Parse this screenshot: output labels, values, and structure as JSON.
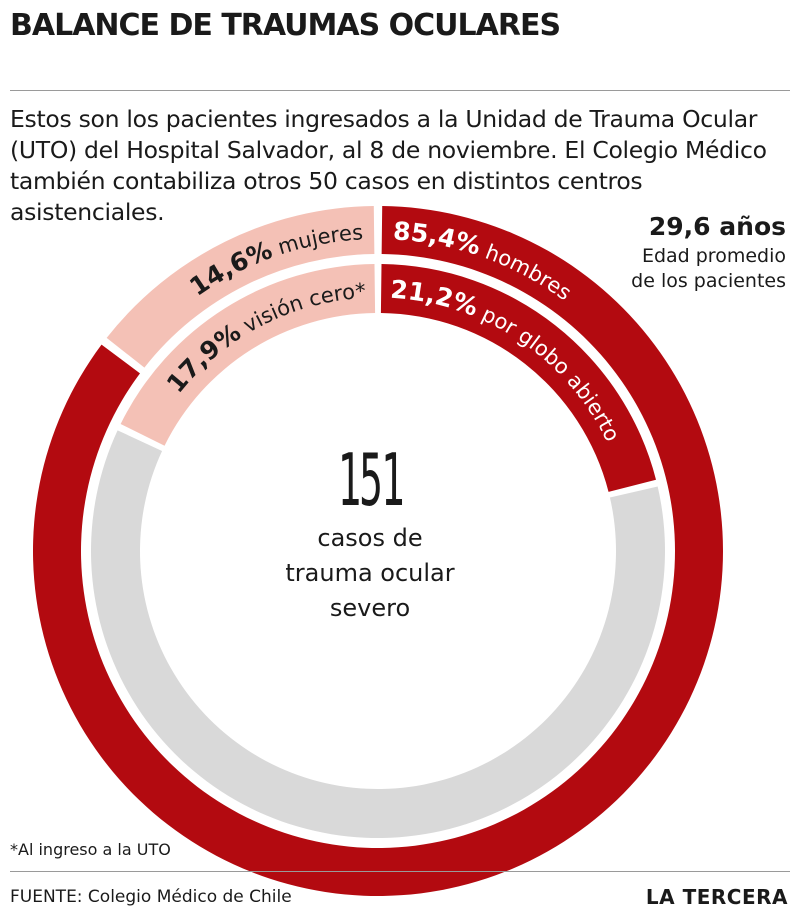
{
  "header": {
    "title": "BALANCE DE TRAUMAS OCULARES",
    "subtitle": "Estos son los pacientes ingresados a la Unidad de Trauma Ocular (UTO) del Hospital Salvador, al 8 de noviembre. El Colegio Médico también contabiliza otros 50 casos en distintos centros asistenciales."
  },
  "age": {
    "value": "29,6 años",
    "desc_line1": "Edad promedio",
    "desc_line2": "de los pacientes"
  },
  "center": {
    "number": "151",
    "line1": "casos de",
    "line2": "trauma ocular",
    "line3": "severo"
  },
  "colors": {
    "red": "#b30a10",
    "pink": "#f4c1b6",
    "gray": "#d9d9d9"
  },
  "chart_data": {
    "type": "pie",
    "rings": [
      {
        "name": "gender",
        "segments": [
          {
            "pct_text": "85,4%",
            "label": "hombres",
            "value": 85.4,
            "color": "#b30a10",
            "text_color": "#ffffff"
          },
          {
            "pct_text": "14,6%",
            "label": "mujeres",
            "value": 14.6,
            "color": "#f4c1b6",
            "text_color": "#1a1a1a"
          }
        ]
      },
      {
        "name": "injury",
        "segments": [
          {
            "pct_text": "21,2%",
            "label": "por globo abierto",
            "value": 21.2,
            "color": "#b30a10",
            "text_color": "#ffffff"
          },
          {
            "pct_text": "",
            "label": "",
            "value": 60.9,
            "color": "#d9d9d9",
            "text_color": "#1a1a1a"
          },
          {
            "pct_text": "17,9%",
            "label": "visión cero*",
            "value": 17.9,
            "color": "#f4c1b6",
            "text_color": "#1a1a1a"
          }
        ]
      }
    ],
    "total": 151
  },
  "footer": {
    "footnote": "*Al ingreso a la UTO",
    "source": "FUENTE: Colegio Médico de Chile",
    "logo": "LA TERCERA"
  }
}
